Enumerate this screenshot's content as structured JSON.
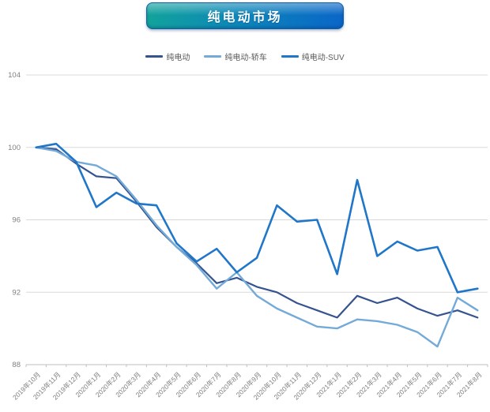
{
  "title": {
    "text": "纯电动市场"
  },
  "chart_data": {
    "type": "line",
    "title": "纯电动市场",
    "xlabel": "",
    "ylabel": "",
    "ylim": [
      88,
      104
    ],
    "yticks": [
      88,
      92,
      96,
      100,
      104
    ],
    "grid": "horizontal",
    "legend_position": "top",
    "axis_color": "#bfbfbf",
    "gridline_color": "#d9d9d9",
    "tick_label_color": "#808080",
    "categories": [
      "2019年10月",
      "2019年11月",
      "2019年12月",
      "2020年1月",
      "2020年2月",
      "2020年3月",
      "2020年4月",
      "2020年5月",
      "2020年6月",
      "2020年7月",
      "2020年8月",
      "2020年9月",
      "2020年10月",
      "2020年11月",
      "2020年12月",
      "2021年1月",
      "2021年2月",
      "2021年3月",
      "2021年4月",
      "2021年5月",
      "2021年6月",
      "2021年7月",
      "2021年8月"
    ],
    "series": [
      {
        "name": "纯电动",
        "color": "#35538f",
        "width": 2.2,
        "values": [
          100.0,
          99.9,
          99.1,
          98.4,
          98.3,
          97.0,
          95.6,
          94.5,
          93.6,
          92.5,
          92.8,
          92.3,
          92.0,
          91.4,
          91.0,
          90.6,
          91.8,
          91.4,
          91.7,
          91.1,
          90.7,
          91.0,
          90.6
        ]
      },
      {
        "name": "纯电动-轿车",
        "color": "#74aad8",
        "width": 2.4,
        "values": [
          100.0,
          99.8,
          99.2,
          99.0,
          98.4,
          97.1,
          95.7,
          94.5,
          93.5,
          92.2,
          93.1,
          91.8,
          91.1,
          90.6,
          90.1,
          90.0,
          90.5,
          90.4,
          90.2,
          89.8,
          89.0,
          91.7,
          91.0
        ]
      },
      {
        "name": "纯电动-SUV",
        "color": "#2076c8",
        "width": 2.6,
        "values": [
          100.0,
          100.2,
          99.2,
          96.7,
          97.5,
          96.9,
          96.8,
          94.7,
          93.7,
          94.4,
          93.1,
          93.9,
          96.8,
          95.9,
          96.0,
          93.0,
          98.2,
          94.0,
          94.8,
          94.3,
          94.5,
          92.0,
          92.2
        ]
      }
    ]
  }
}
